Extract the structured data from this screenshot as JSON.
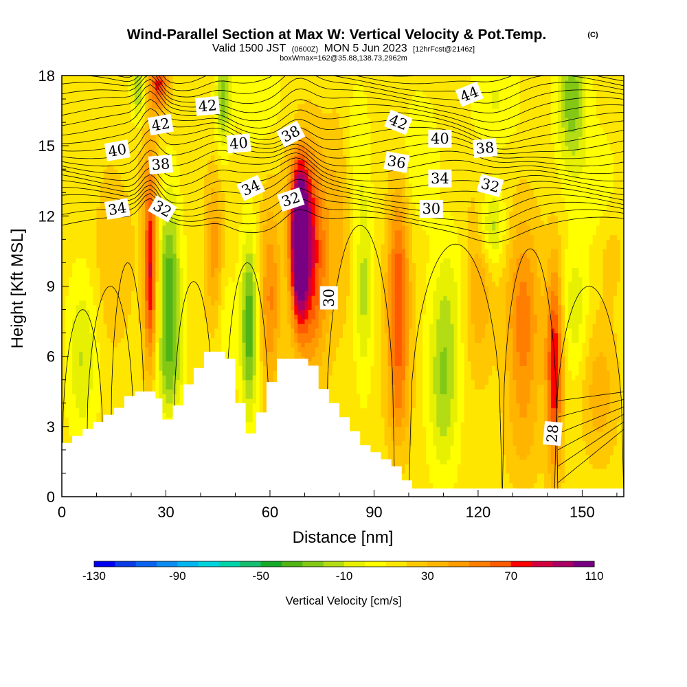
{
  "header": {
    "title": "Wind-Parallel Section at Max W: Vertical Velocity & Pot.Temp.",
    "copyright": "(C)",
    "valid_prefix": "Valid 1500 JST",
    "valid_utc": "(0600Z)",
    "valid_suffix": "MON 5 Jun 2023",
    "forecast": "[12hrFcst@2146z]",
    "box_info": "boxWmax=162@35.88,138.73,2962m"
  },
  "chart_data": {
    "type": "heatmap",
    "xlabel": "Distance [nm]",
    "ylabel": "Height [Kft MSL]",
    "xlim": [
      0,
      162
    ],
    "ylim": [
      0,
      18
    ],
    "x_ticks": [
      0,
      30,
      60,
      90,
      120,
      150
    ],
    "y_ticks": [
      0,
      3,
      6,
      9,
      12,
      15,
      18
    ],
    "colorbar": {
      "label": "Vertical Velocity [cm/s]",
      "min": -130,
      "max": 110,
      "step": 10,
      "tick_values": [
        -130,
        -90,
        -50,
        -10,
        30,
        70,
        110
      ],
      "tick_labels": [
        "-130",
        "-90",
        "-50",
        "-10",
        "30",
        "70",
        "110"
      ],
      "colors": [
        "#0000f0",
        "#0a3ce6",
        "#0a64f0",
        "#0a8cf0",
        "#00b4f0",
        "#00d2dc",
        "#00d2aa",
        "#14be6e",
        "#14aa28",
        "#50b414",
        "#82c814",
        "#b4dc14",
        "#e6f000",
        "#ffff00",
        "#ffe600",
        "#ffc800",
        "#ffb400",
        "#ff9b00",
        "#ff7d00",
        "#ff5a00",
        "#ff0000",
        "#d2003c",
        "#aa0064",
        "#780082"
      ]
    },
    "background_w": 15,
    "vertical_velocity_features": [
      {
        "x": 6,
        "y": 6.0,
        "sx": 3,
        "sy": 2.5,
        "w": -22
      },
      {
        "x": 25.5,
        "y": 9.5,
        "sx": 1.3,
        "sy": 2.8,
        "w": 70
      },
      {
        "x": 25.5,
        "y": 14.0,
        "sx": 2.0,
        "sy": 2.0,
        "w": 20
      },
      {
        "x": 31,
        "y": 8.7,
        "sx": 2.3,
        "sy": 3.0,
        "w": -48
      },
      {
        "x": 31,
        "y": 5.2,
        "sx": 3.0,
        "sy": 1.2,
        "w": -12
      },
      {
        "x": 22,
        "y": 17.5,
        "sx": 1.3,
        "sy": 1.0,
        "w": -35
      },
      {
        "x": 28,
        "y": 17.7,
        "sx": 2.0,
        "sy": 0.8,
        "w": 60
      },
      {
        "x": 39,
        "y": 14.0,
        "sx": 4.0,
        "sy": 2.0,
        "w": 5
      },
      {
        "x": 44,
        "y": 10.5,
        "sx": 1.8,
        "sy": 2.2,
        "w": 35
      },
      {
        "x": 47,
        "y": 7.5,
        "sx": 2.0,
        "sy": 2.2,
        "w": -8
      },
      {
        "x": 46.5,
        "y": 17.0,
        "sx": 1.5,
        "sy": 1.5,
        "w": -35
      },
      {
        "x": 54,
        "y": 7.3,
        "sx": 1.7,
        "sy": 2.6,
        "w": -50
      },
      {
        "x": 60,
        "y": 8.5,
        "sx": 2.0,
        "sy": 2.8,
        "w": 40
      },
      {
        "x": 68.5,
        "y": 10.8,
        "sx": 1.6,
        "sy": 2.0,
        "w": 110
      },
      {
        "x": 71.5,
        "y": 10.0,
        "sx": 3.5,
        "sy": 3.0,
        "w": 65
      },
      {
        "x": 69,
        "y": 13.0,
        "sx": 3.0,
        "sy": 1.5,
        "w": 30
      },
      {
        "x": 80,
        "y": 12.0,
        "sx": 3.0,
        "sy": 3.0,
        "w": 20
      },
      {
        "x": 87,
        "y": 9.0,
        "sx": 1.8,
        "sy": 2.8,
        "w": -25
      },
      {
        "x": 85,
        "y": 15.0,
        "sx": 2.5,
        "sy": 2.0,
        "w": -10
      },
      {
        "x": 97,
        "y": 8.5,
        "sx": 2.2,
        "sy": 3.2,
        "w": 60
      },
      {
        "x": 97,
        "y": 4.0,
        "sx": 2.5,
        "sy": 1.5,
        "w": 20
      },
      {
        "x": 103,
        "y": 14.5,
        "sx": 4.0,
        "sy": 2.0,
        "w": -10
      },
      {
        "x": 110,
        "y": 5.0,
        "sx": 3.0,
        "sy": 2.8,
        "w": -32
      },
      {
        "x": 113,
        "y": 9.0,
        "sx": 4.0,
        "sy": 2.0,
        "w": -8
      },
      {
        "x": 120,
        "y": 9.0,
        "sx": 3.0,
        "sy": 2.5,
        "w": 30
      },
      {
        "x": 124,
        "y": 11.5,
        "sx": 2.5,
        "sy": 1.2,
        "w": -28
      },
      {
        "x": 133,
        "y": 7.5,
        "sx": 3.5,
        "sy": 3.0,
        "w": 45
      },
      {
        "x": 133,
        "y": 2.5,
        "sx": 3.5,
        "sy": 1.5,
        "w": 15
      },
      {
        "x": 142,
        "y": 5.5,
        "sx": 1.6,
        "sy": 3.0,
        "w": 70
      },
      {
        "x": 148,
        "y": 8.0,
        "sx": 2.5,
        "sy": 2.0,
        "w": -18
      },
      {
        "x": 147,
        "y": 17.0,
        "sx": 3.0,
        "sy": 2.2,
        "w": -38
      },
      {
        "x": 155,
        "y": 4.5,
        "sx": 3.5,
        "sy": 2.0,
        "w": 25
      },
      {
        "x": 158,
        "y": 10.5,
        "sx": 3.0,
        "sy": 1.5,
        "w": 15
      },
      {
        "x": 155,
        "y": 13.0,
        "sx": 4.0,
        "sy": 2.0,
        "w": -8
      },
      {
        "x": 10,
        "y": 16.5,
        "sx": 5.0,
        "sy": 2.0,
        "w": 8
      },
      {
        "x": 15,
        "y": 10.0,
        "sx": 4.0,
        "sy": 2.5,
        "w": 18
      },
      {
        "x": 125,
        "y": 17.0,
        "sx": 5.0,
        "sy": 1.5,
        "w": -12
      },
      {
        "x": 57,
        "y": 17.0,
        "sx": 5.0,
        "sy": 1.5,
        "w": -8
      }
    ],
    "terrain_kft": [
      {
        "x": 0,
        "h": 2.3
      },
      {
        "x": 3,
        "h": 2.6
      },
      {
        "x": 6,
        "h": 2.9
      },
      {
        "x": 9,
        "h": 3.2
      },
      {
        "x": 12,
        "h": 3.5
      },
      {
        "x": 15,
        "h": 3.8
      },
      {
        "x": 18,
        "h": 4.3
      },
      {
        "x": 21,
        "h": 4.5
      },
      {
        "x": 24,
        "h": 4.5
      },
      {
        "x": 27,
        "h": 4.2
      },
      {
        "x": 29,
        "h": 3.3
      },
      {
        "x": 32,
        "h": 3.9
      },
      {
        "x": 35,
        "h": 4.8
      },
      {
        "x": 38,
        "h": 5.5
      },
      {
        "x": 41,
        "h": 6.2
      },
      {
        "x": 44,
        "h": 6.2
      },
      {
        "x": 47,
        "h": 5.9
      },
      {
        "x": 50,
        "h": 4.0
      },
      {
        "x": 53,
        "h": 2.7
      },
      {
        "x": 56,
        "h": 3.6
      },
      {
        "x": 59,
        "h": 4.9
      },
      {
        "x": 62,
        "h": 5.9
      },
      {
        "x": 65,
        "h": 5.9
      },
      {
        "x": 68,
        "h": 5.9
      },
      {
        "x": 71,
        "h": 5.6
      },
      {
        "x": 74,
        "h": 4.6
      },
      {
        "x": 77,
        "h": 4.0
      },
      {
        "x": 80,
        "h": 3.4
      },
      {
        "x": 83,
        "h": 2.8
      },
      {
        "x": 86,
        "h": 2.2
      },
      {
        "x": 89,
        "h": 1.9
      },
      {
        "x": 92,
        "h": 1.6
      },
      {
        "x": 95,
        "h": 1.3
      },
      {
        "x": 98,
        "h": 0.7
      },
      {
        "x": 101,
        "h": 0.35
      },
      {
        "x": 162,
        "h": 0.35
      }
    ],
    "theta_contours": {
      "labels": [
        {
          "text": "42",
          "x": 42,
          "y": 16.7,
          "angle": -5
        },
        {
          "text": "42",
          "x": 28.5,
          "y": 15.9,
          "angle": -10
        },
        {
          "text": "40",
          "x": 16,
          "y": 14.8,
          "angle": -10
        },
        {
          "text": "40",
          "x": 51,
          "y": 15.1,
          "angle": -5
        },
        {
          "text": "38",
          "x": 28.5,
          "y": 14.2,
          "angle": -5
        },
        {
          "text": "38",
          "x": 66,
          "y": 15.5,
          "angle": -28
        },
        {
          "text": "42",
          "x": 97,
          "y": 16.0,
          "angle": 22
        },
        {
          "text": "44",
          "x": 117.5,
          "y": 17.2,
          "angle": -22
        },
        {
          "text": "40",
          "x": 109,
          "y": 15.3,
          "angle": 0
        },
        {
          "text": "38",
          "x": 122,
          "y": 14.9,
          "angle": -5
        },
        {
          "text": "36",
          "x": 96.5,
          "y": 14.3,
          "angle": 10
        },
        {
          "text": "34",
          "x": 109,
          "y": 13.6,
          "angle": 0
        },
        {
          "text": "32",
          "x": 123.5,
          "y": 13.3,
          "angle": 15
        },
        {
          "text": "34",
          "x": 54.5,
          "y": 13.2,
          "angle": -25
        },
        {
          "text": "32",
          "x": 66,
          "y": 12.7,
          "angle": -18
        },
        {
          "text": "30",
          "x": 106.5,
          "y": 12.3,
          "angle": 0
        },
        {
          "text": "34",
          "x": 16,
          "y": 12.3,
          "angle": -10
        },
        {
          "text": "32",
          "x": 29,
          "y": 12.3,
          "angle": 30
        },
        {
          "text": "30",
          "x": 77,
          "y": 8.5,
          "angle": -90
        },
        {
          "text": "28",
          "x": 141.5,
          "y": 2.7,
          "angle": -85
        }
      ]
    }
  }
}
